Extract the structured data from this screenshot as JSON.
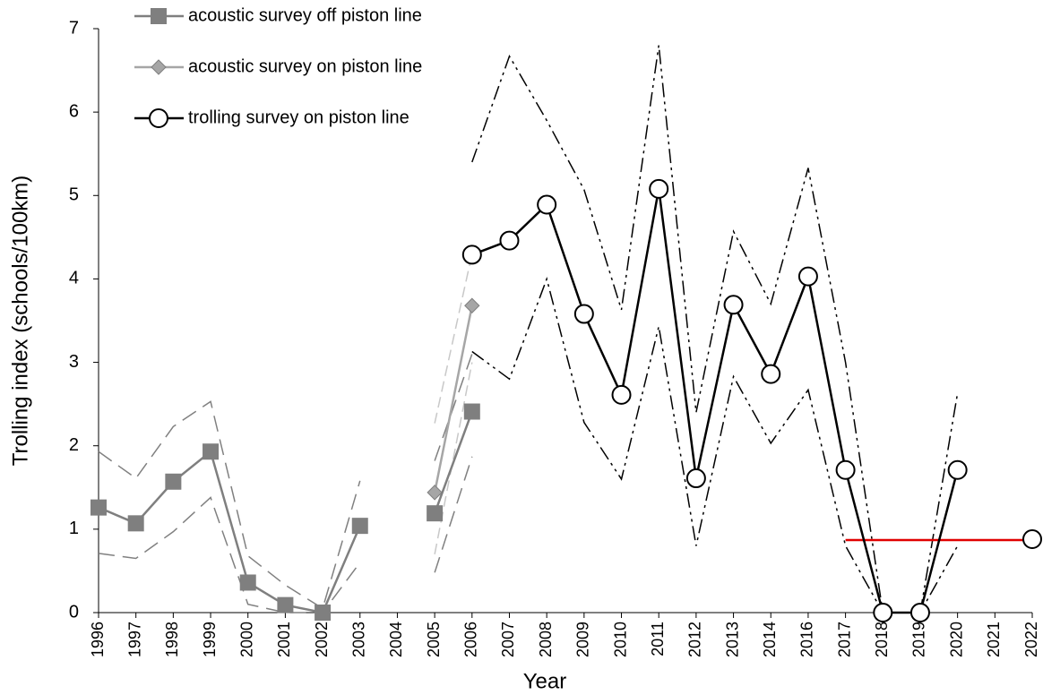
{
  "chart_data": {
    "type": "line",
    "x_label": "Year",
    "y_label": "Trolling index (schools/100km)",
    "categories": [
      "1996",
      "1997",
      "1998",
      "1999",
      "2000",
      "2001",
      "2002",
      "2003",
      "2004",
      "2005",
      "2006",
      "2007",
      "2008",
      "2009",
      "2010",
      "2011",
      "2012",
      "2013",
      "2014",
      "2016",
      "2017",
      "2018",
      "2019",
      "2020",
      "2021",
      "2022"
    ],
    "ylim": [
      0,
      7
    ],
    "yticks": [
      0,
      1,
      2,
      3,
      4,
      5,
      6,
      7
    ],
    "grid": false,
    "legend": "top-left",
    "series": [
      {
        "name": "acoustic survey off piston line",
        "color": "#7f7f7f",
        "marker": "square",
        "band_color": "#808080",
        "values": [
          1.26,
          1.07,
          1.57,
          1.93,
          0.36,
          0.09,
          0,
          1.04,
          null,
          1.19,
          2.41,
          null,
          null,
          null,
          null,
          null,
          null,
          null,
          null,
          null,
          null,
          null,
          null,
          null,
          null,
          null
        ],
        "upper": [
          1.93,
          1.61,
          2.23,
          2.53,
          0.68,
          0.33,
          0.05,
          1.58,
          null,
          1.82,
          3.1,
          null,
          null,
          null,
          null,
          null,
          null,
          null,
          null,
          null,
          null,
          null,
          null,
          null,
          null,
          null
        ],
        "lower": [
          0.71,
          0.65,
          0.97,
          1.38,
          0.1,
          0,
          0,
          0.6,
          null,
          0.48,
          1.87,
          null,
          null,
          null,
          null,
          null,
          null,
          null,
          null,
          null,
          null,
          null,
          null,
          null,
          null,
          null
        ]
      },
      {
        "name": "acoustic survey on piston line",
        "color": "#a6a6a6",
        "marker": "diamond",
        "band_color": "#c8c8c8",
        "values": [
          null,
          null,
          null,
          null,
          null,
          null,
          null,
          null,
          null,
          1.44,
          3.68,
          null,
          null,
          null,
          null,
          null,
          null,
          null,
          null,
          null,
          null,
          null,
          null,
          null,
          null,
          null
        ],
        "upper": [
          null,
          null,
          null,
          null,
          null,
          null,
          null,
          null,
          null,
          2.27,
          4.3,
          null,
          null,
          null,
          null,
          null,
          null,
          null,
          null,
          null,
          null,
          null,
          null,
          null,
          null,
          null
        ],
        "lower": [
          null,
          null,
          null,
          null,
          null,
          null,
          null,
          null,
          null,
          0.7,
          3.0,
          null,
          null,
          null,
          null,
          null,
          null,
          null,
          null,
          null,
          null,
          null,
          null,
          null,
          null,
          null
        ]
      },
      {
        "name": "trolling survey on piston line",
        "color": "#000000",
        "marker": "circle",
        "band_color": "#000000",
        "values": [
          null,
          null,
          null,
          null,
          null,
          null,
          null,
          null,
          null,
          null,
          4.29,
          4.46,
          4.89,
          3.58,
          2.61,
          5.08,
          1.61,
          3.69,
          2.86,
          4.03,
          1.71,
          0,
          0,
          1.71,
          null,
          0.88
        ],
        "upper": [
          null,
          null,
          null,
          null,
          null,
          null,
          null,
          null,
          null,
          null,
          5.4,
          6.67,
          5.9,
          5.07,
          3.63,
          6.8,
          2.4,
          4.57,
          3.7,
          5.33,
          3.0,
          0,
          0,
          2.63,
          null,
          null
        ],
        "lower": [
          null,
          null,
          null,
          null,
          null,
          null,
          null,
          null,
          null,
          null,
          3.13,
          2.8,
          4.0,
          2.28,
          1.6,
          3.43,
          0.8,
          2.83,
          2.03,
          2.67,
          0.8,
          0,
          0,
          0.8,
          null,
          null
        ]
      }
    ],
    "reference_lines": [
      {
        "color": "#e00000",
        "x": [
          "2017",
          "2022"
        ],
        "value": 0.87
      }
    ]
  }
}
